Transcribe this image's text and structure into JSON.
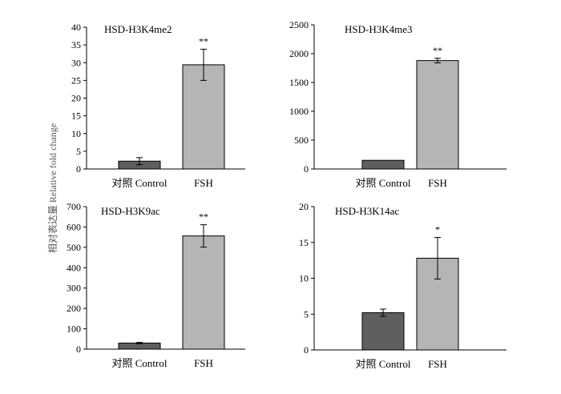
{
  "ylabel": "相对表达量 Relative fold change",
  "colors": {
    "control": "#5f5f5f",
    "treatment": "#b5b5b5",
    "axis": "#000000"
  },
  "chart_data": [
    {
      "type": "bar",
      "title": "HSD-H3K4me2",
      "categories": [
        "对照 Control",
        "FSH"
      ],
      "values": [
        2.2,
        29.4
      ],
      "errors": [
        1.0,
        4.4
      ],
      "significance": [
        "",
        "**"
      ],
      "ylim": [
        0,
        40
      ],
      "yticks": [
        0,
        5,
        10,
        15,
        20,
        25,
        30,
        35,
        40
      ]
    },
    {
      "type": "bar",
      "title": "HSD-H3K4me3",
      "categories": [
        "对照 Control",
        "FSH"
      ],
      "values": [
        150,
        1880
      ],
      "errors": [
        0,
        40
      ],
      "significance": [
        "",
        "**"
      ],
      "ylim": [
        0,
        2500
      ],
      "yticks": [
        0,
        500,
        1000,
        1500,
        2000,
        2500
      ]
    },
    {
      "type": "bar",
      "title": "HSD-H3K9ac",
      "categories": [
        "对照 Control",
        "FSH"
      ],
      "values": [
        30,
        556
      ],
      "errors": [
        3,
        55
      ],
      "significance": [
        "",
        "**"
      ],
      "ylim": [
        0,
        700
      ],
      "yticks": [
        0,
        100,
        200,
        300,
        400,
        500,
        600,
        700
      ]
    },
    {
      "type": "bar",
      "title": "HSD-H3K14ac",
      "categories": [
        "对照 Control",
        "FSH"
      ],
      "values": [
        5.2,
        12.8
      ],
      "errors": [
        0.5,
        2.9
      ],
      "significance": [
        "",
        "*"
      ],
      "ylim": [
        0,
        20
      ],
      "yticks": [
        0,
        5,
        10,
        15,
        20
      ]
    }
  ]
}
